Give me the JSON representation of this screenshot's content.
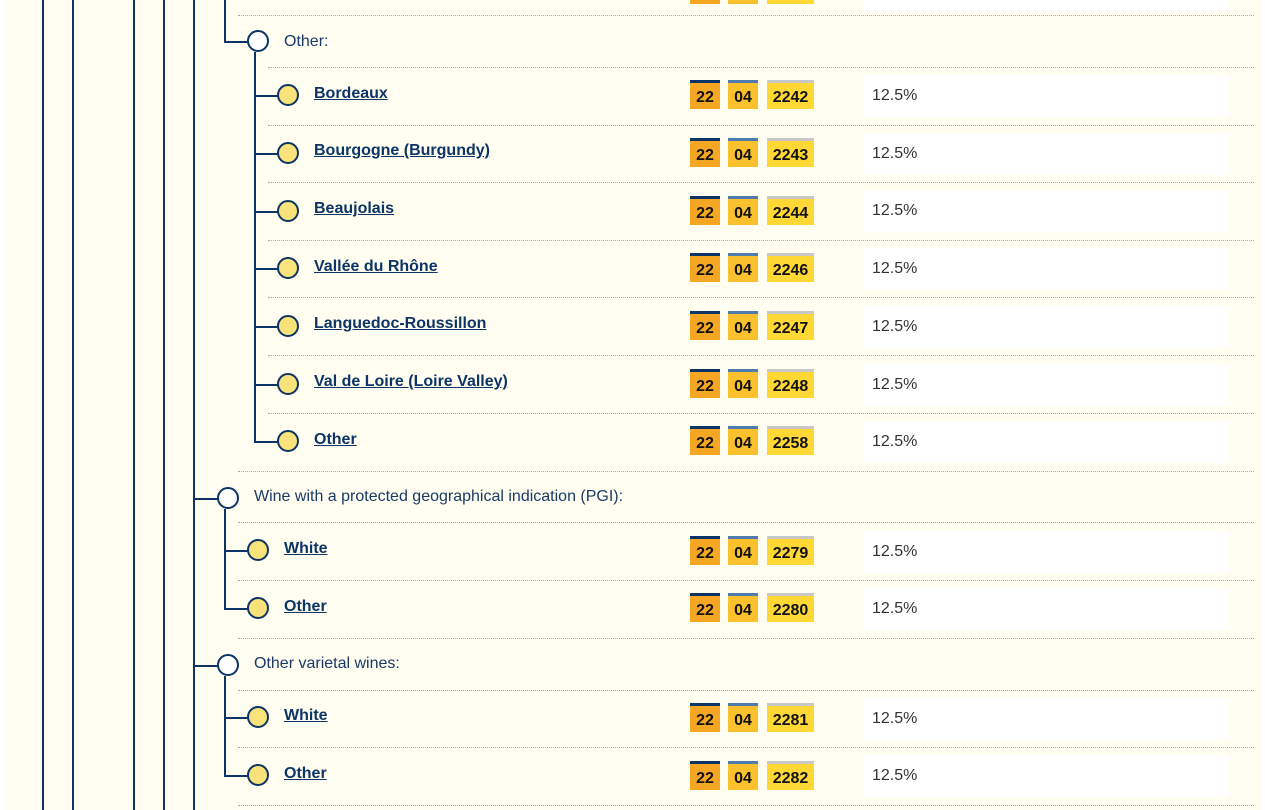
{
  "sections": [
    {
      "heading": "Other:",
      "items": [
        {
          "label": "Bordeaux",
          "code": [
            "22",
            "04",
            "2242"
          ],
          "rate": "12.5%"
        },
        {
          "label": "Bourgogne (Burgundy)",
          "code": [
            "22",
            "04",
            "2243"
          ],
          "rate": "12.5%"
        },
        {
          "label": "Beaujolais",
          "code": [
            "22",
            "04",
            "2244"
          ],
          "rate": "12.5%"
        },
        {
          "label": "Vallée du Rhône",
          "code": [
            "22",
            "04",
            "2246"
          ],
          "rate": "12.5%"
        },
        {
          "label": "Languedoc-Roussillon",
          "code": [
            "22",
            "04",
            "2247"
          ],
          "rate": "12.5%"
        },
        {
          "label": "Val de Loire (Loire Valley)",
          "code": [
            "22",
            "04",
            "2248"
          ],
          "rate": "12.5%"
        },
        {
          "label": "Other",
          "code": [
            "22",
            "04",
            "2258"
          ],
          "rate": "12.5%"
        }
      ]
    },
    {
      "heading": "Wine with a protected geographical indication (PGI):",
      "items": [
        {
          "label": "White",
          "code": [
            "22",
            "04",
            "2279"
          ],
          "rate": "12.5%"
        },
        {
          "label": "Other",
          "code": [
            "22",
            "04",
            "2280"
          ],
          "rate": "12.5%"
        }
      ]
    },
    {
      "heading": "Other varietal wines:",
      "items": [
        {
          "label": "White",
          "code": [
            "22",
            "04",
            "2281"
          ],
          "rate": "12.5%"
        },
        {
          "label": "Other",
          "code": [
            "22",
            "04",
            "2282"
          ],
          "rate": "12.5%"
        }
      ]
    }
  ]
}
